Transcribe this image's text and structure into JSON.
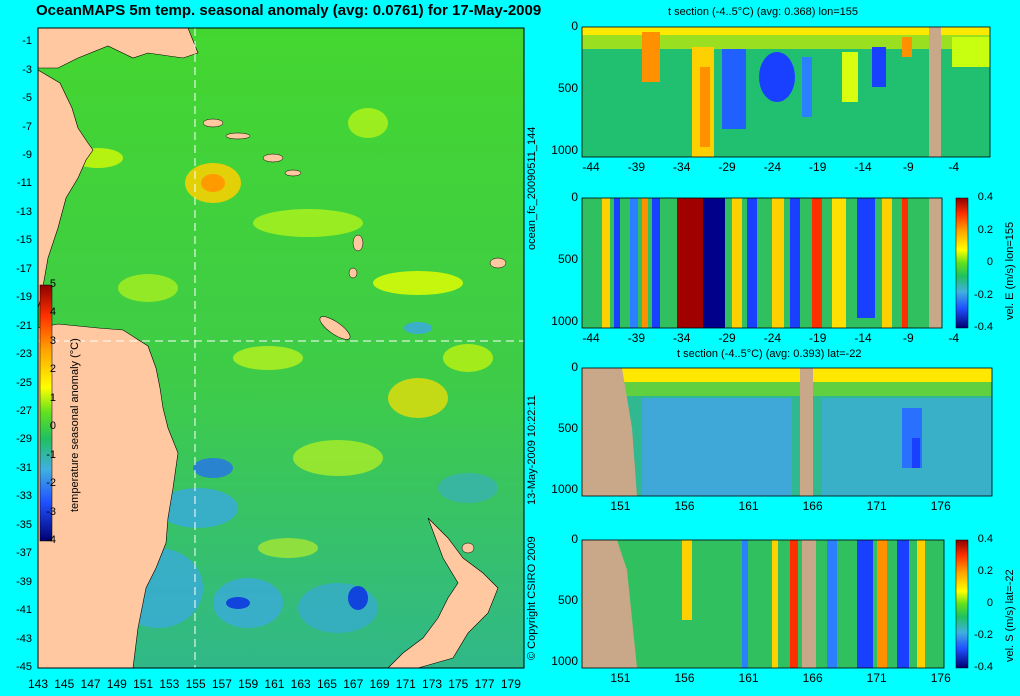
{
  "main_title": "OceanMAPS 5m temp. seasonal anomaly (avg: 0.0761) for 17-May-2009",
  "colorbar": {
    "label": "temperature seasonal anomaly (°C)",
    "ticks": [
      "5",
      "4",
      "3",
      "2",
      "1",
      "0",
      "-1",
      "-2",
      "-3",
      "-4"
    ]
  },
  "side_notes": {
    "run": "ocean_fc_20090511_144",
    "date": "13-May-2009 10:22:11",
    "copyright": "© Copyright CSIRO 2009"
  },
  "sections": {
    "s1": {
      "title": "t section (-4..5°C) (avg: 0.368) lon=155"
    },
    "s2": {
      "side_label": "vel. E (m/s) lon=155",
      "cb_ticks": [
        "0.4",
        "0.2",
        "0",
        "-0.2",
        "-0.4"
      ]
    },
    "s3": {
      "title": "t section (-4..5°C) (avg: 0.393) lat=-22"
    },
    "s4": {
      "side_label": "vel. S (m/s) lat=-22",
      "cb_ticks": [
        "0.4",
        "0.2",
        "0",
        "-0.2",
        "-0.4"
      ]
    }
  },
  "chart_data": [
    {
      "type": "heatmap",
      "title": "OceanMAPS 5m temp. seasonal anomaly (avg: 0.0761) for 17-May-2009",
      "x_ticks": [
        "143",
        "145",
        "147",
        "149",
        "151",
        "153",
        "155",
        "157",
        "159",
        "161",
        "163",
        "165",
        "167",
        "169",
        "171",
        "173",
        "175",
        "177",
        "179"
      ],
      "y_ticks": [
        "-1",
        "-3",
        "-5",
        "-7",
        "-9",
        "-11",
        "-13",
        "-15",
        "-17",
        "-19",
        "-21",
        "-23",
        "-25",
        "-27",
        "-29",
        "-31",
        "-33",
        "-35",
        "-37",
        "-39",
        "-41",
        "-43",
        "-45"
      ],
      "xlim": [
        143,
        180
      ],
      "ylim": [
        -45,
        0
      ],
      "colorbar_range": [
        -4,
        5
      ],
      "section_lines": {
        "lon": 155,
        "lat": -22
      }
    },
    {
      "type": "heatmap",
      "title": "t section (-4..5°C) (avg: 0.368) lon=155",
      "x_ticks": [
        "-44",
        "-39",
        "-34",
        "-29",
        "-24",
        "-19",
        "-14",
        "-9",
        "-4"
      ],
      "y_ticks": [
        "0",
        "500",
        "1000"
      ],
      "xlim": [
        -45,
        0
      ],
      "ylim": [
        0,
        1050
      ]
    },
    {
      "type": "heatmap",
      "title": "",
      "x_ticks": [
        "-44",
        "-39",
        "-34",
        "-29",
        "-24",
        "-19",
        "-14",
        "-9",
        "-4"
      ],
      "y_ticks": [
        "0",
        "500",
        "1000"
      ],
      "xlim": [
        -45,
        0
      ],
      "ylim": [
        0,
        1050
      ],
      "colorbar_range": [
        -0.4,
        0.4
      ]
    },
    {
      "type": "heatmap",
      "title": "t section (-4..5°C) (avg: 0.393) lat=-22",
      "x_ticks": [
        "151",
        "156",
        "161",
        "166",
        "171",
        "176"
      ],
      "y_ticks": [
        "0",
        "500",
        "1000"
      ],
      "xlim": [
        148,
        180
      ],
      "ylim": [
        0,
        1050
      ]
    },
    {
      "type": "heatmap",
      "title": "",
      "x_ticks": [
        "151",
        "156",
        "161",
        "166",
        "171",
        "176"
      ],
      "y_ticks": [
        "0",
        "500",
        "1000"
      ],
      "xlim": [
        148,
        180
      ],
      "ylim": [
        0,
        1050
      ],
      "colorbar_range": [
        -0.4,
        0.4
      ]
    }
  ]
}
